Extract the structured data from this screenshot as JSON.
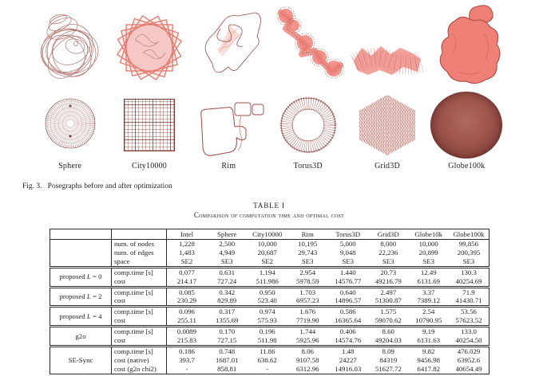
{
  "figure": {
    "caption_label": "Fig. 3.",
    "caption_text": "Posegraphs before and after optimization",
    "datasets": [
      "Sphere",
      "City10000",
      "Rim",
      "Torus3D",
      "Grid3D",
      "Globe100k"
    ]
  },
  "table": {
    "title": "TABLE I",
    "subtitle": "Comparison of computation time and optimal cost",
    "columns": [
      "Intel",
      "Sphere",
      "City10000",
      "Rim",
      "Torus3D",
      "Grid3D",
      "Globe10k",
      "Globe100k"
    ],
    "info_rows": [
      {
        "label": "num. of nodes",
        "values": [
          "1,228",
          "2,500",
          "10,000",
          "10,195",
          "5,000",
          "8,000",
          "10,000",
          "99,856"
        ]
      },
      {
        "label": "num. of edges",
        "values": [
          "1,483",
          "4,949",
          "20,687",
          "29,743",
          "9,048",
          "22,236",
          "20,899",
          "200,395"
        ]
      },
      {
        "label": "space",
        "values": [
          "SE2",
          "SE3",
          "SE2",
          "SE3",
          "SE3",
          "SE3",
          "SE3",
          "SE3"
        ]
      }
    ],
    "groups": [
      {
        "label_pre": "proposed ",
        "label_var": "L",
        "label_post": " = 0",
        "rows": [
          {
            "label": "comp.time [s]",
            "values": [
              "0.077",
              "0.631",
              "1.194",
              "2.954",
              "1.440",
              "20.73",
              "12.49",
              "130.3"
            ]
          },
          {
            "label": "cost",
            "values": [
              "214.17",
              "727.24",
              "511.986",
              "5978.59",
              "14576.77",
              "49216.79",
              "6131.69",
              "40254.69"
            ]
          }
        ]
      },
      {
        "label_pre": "proposed ",
        "label_var": "L",
        "label_post": " = 2",
        "rows": [
          {
            "label": "comp.time [s]",
            "values": [
              "0.085",
              "0.342",
              "0.950",
              "1.703",
              "0.640",
              "2.497",
              "3.37",
              "71.9"
            ]
          },
          {
            "label": "cost",
            "values": [
              "230.29",
              "829.89",
              "523.40",
              "6957.23",
              "14896.57",
              "51300.87",
              "7389.12",
              "41430.71"
            ]
          }
        ]
      },
      {
        "label_pre": "proposed ",
        "label_var": "L",
        "label_post": " = 4",
        "rows": [
          {
            "label": "comp.time [s]",
            "values": [
              "0.096",
              "0.317",
              "0.974",
              "1.676",
              "0.586",
              "1.575",
              "2.54",
              "53.56"
            ]
          },
          {
            "label": "cost",
            "values": [
              "255.11",
              "1355.69",
              "575.93",
              "7719.90",
              "16365.64",
              "59070.62",
              "10790.95",
              "57623.52"
            ]
          }
        ]
      },
      {
        "label_pre": "g2o",
        "label_var": "",
        "label_post": "",
        "rows": [
          {
            "label": "comp.time [s]",
            "values": [
              "0.0089",
              "0.170",
              "0.196",
              "1.744",
              "0.406",
              "8.60",
              "9.19",
              "133.0"
            ]
          },
          {
            "label": "cost",
            "values": [
              "215.83",
              "727.15",
              "511.98",
              "5925.96",
              "14574.76",
              "49204.03",
              "6131.63",
              "40254.50"
            ]
          }
        ]
      },
      {
        "label_pre": "SE-Sync",
        "label_var": "",
        "label_post": "",
        "rows": [
          {
            "label": "comp.time [s]",
            "values": [
              "0.186",
              "0.748",
              "11.86",
              "8.06",
              "1.48",
              "8.09",
              "9.82",
              "476.029"
            ]
          },
          {
            "label": "cost (native)",
            "values": [
              "393.7",
              "1687.01",
              "638.62",
              "9107.58",
              "24227",
              "84319",
              "9456.98",
              "63952.6"
            ]
          },
          {
            "label": "cost (g2o chi2)",
            "values": [
              "-",
              "858.81",
              "-",
              "6312.96",
              "14916.03",
              "51627.72",
              "6417.82",
              "40654.49"
            ]
          }
        ]
      }
    ]
  },
  "colors": {
    "graph_salmon": "#ee8279",
    "graph_dark_red": "#8d423c",
    "table_line": "#2b2b2b",
    "text": "#1f1f1f"
  }
}
